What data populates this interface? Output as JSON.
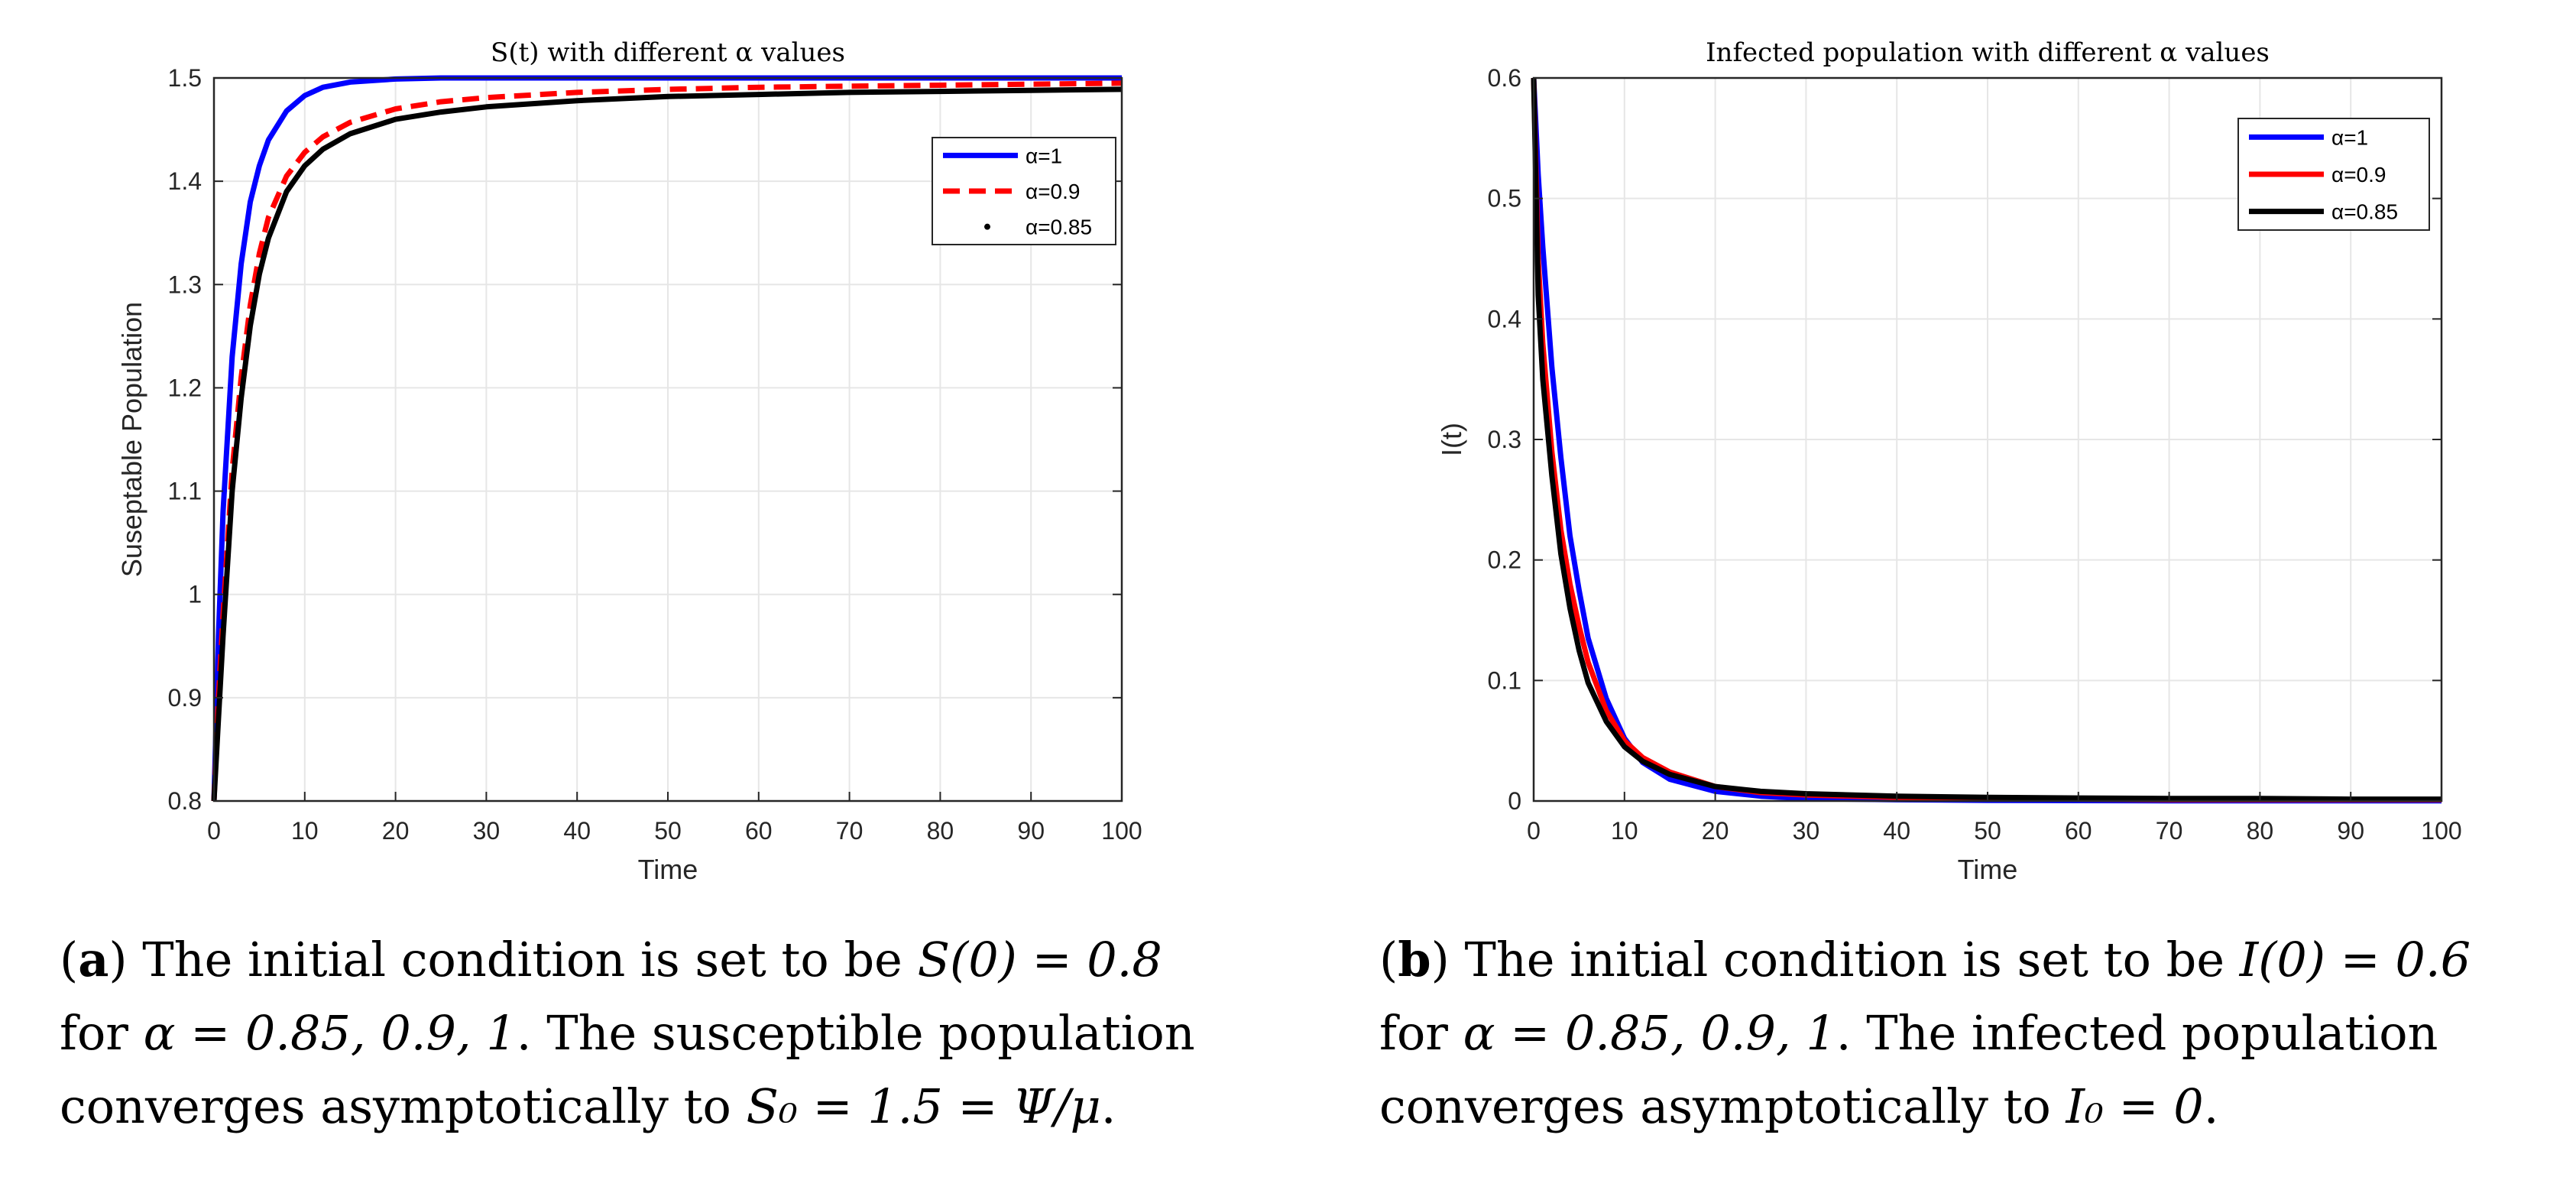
{
  "chart_data": [
    {
      "type": "line",
      "title": "S(t) with different α values",
      "xlabel": "Time",
      "ylabel": "Suseptable Population",
      "xlim": [
        0,
        100
      ],
      "ylim": [
        0.8,
        1.5
      ],
      "xticks": [
        "0",
        "10",
        "20",
        "30",
        "40",
        "50",
        "60",
        "70",
        "80",
        "90",
        "100"
      ],
      "yticks": [
        "0.8",
        "0.9",
        "1",
        "1.1",
        "1.2",
        "1.3",
        "1.4",
        "1.5"
      ],
      "grid": true,
      "legend_position": "top-right",
      "x": [
        0,
        0.5,
        1,
        2,
        3,
        4,
        5,
        6,
        8,
        10,
        12,
        15,
        20,
        25,
        30,
        40,
        50,
        60,
        70,
        80,
        90,
        100
      ],
      "series": [
        {
          "name": "α=1",
          "legend": "α=1",
          "style": "solid",
          "color": "#0000ff",
          "values": [
            0.8,
            0.96,
            1.08,
            1.23,
            1.32,
            1.38,
            1.415,
            1.44,
            1.468,
            1.483,
            1.491,
            1.496,
            1.499,
            1.5,
            1.5,
            1.5,
            1.5,
            1.5,
            1.5,
            1.5,
            1.5,
            1.5
          ]
        },
        {
          "name": "α=0.9",
          "legend": "α=0.9",
          "style": "dashed",
          "color": "#ff0000",
          "values": [
            0.8,
            0.9,
            0.98,
            1.12,
            1.21,
            1.28,
            1.33,
            1.365,
            1.405,
            1.428,
            1.443,
            1.457,
            1.47,
            1.477,
            1.481,
            1.486,
            1.489,
            1.491,
            1.492,
            1.493,
            1.494,
            1.495
          ]
        },
        {
          "name": "α=0.85",
          "legend": "α=0.85",
          "style": "solid",
          "color": "#000000",
          "values": [
            0.8,
            0.88,
            0.96,
            1.1,
            1.19,
            1.26,
            1.31,
            1.345,
            1.39,
            1.415,
            1.431,
            1.446,
            1.46,
            1.467,
            1.472,
            1.478,
            1.482,
            1.484,
            1.486,
            1.487,
            1.488,
            1.489
          ]
        }
      ]
    },
    {
      "type": "line",
      "title": "Infected population with different α values",
      "xlabel": "Time",
      "ylabel": "I(t)",
      "xlim": [
        0,
        100
      ],
      "ylim": [
        0,
        0.6
      ],
      "xticks": [
        "0",
        "10",
        "20",
        "30",
        "40",
        "50",
        "60",
        "70",
        "80",
        "90",
        "100"
      ],
      "yticks": [
        "0",
        "0.1",
        "0.2",
        "0.3",
        "0.4",
        "0.5",
        "0.6"
      ],
      "grid": true,
      "legend_position": "top-right",
      "x": [
        0,
        0.5,
        1,
        2,
        3,
        4,
        5,
        6,
        8,
        10,
        12,
        15,
        20,
        25,
        30,
        40,
        50,
        60,
        70,
        80,
        90,
        100
      ],
      "series": [
        {
          "name": "α=1",
          "legend": "α=1",
          "style": "solid",
          "color": "#0000ff",
          "values": [
            0.6,
            0.52,
            0.46,
            0.36,
            0.285,
            0.22,
            0.175,
            0.135,
            0.085,
            0.052,
            0.032,
            0.018,
            0.008,
            0.004,
            0.002,
            0.001,
            0.0005,
            0.0003,
            0.0002,
            0.0001,
            0.0001,
            0.0001
          ]
        },
        {
          "name": "α=0.9",
          "legend": "α=0.9",
          "style": "solid",
          "color": "#ff0000",
          "values": [
            0.6,
            0.45,
            0.38,
            0.29,
            0.225,
            0.18,
            0.145,
            0.115,
            0.075,
            0.05,
            0.036,
            0.024,
            0.012,
            0.007,
            0.005,
            0.003,
            0.002,
            0.0015,
            0.001,
            0.001,
            0.001,
            0.001
          ]
        },
        {
          "name": "α=0.85",
          "legend": "α=0.85",
          "style": "solid",
          "color": "#000000",
          "values": [
            0.6,
            0.42,
            0.35,
            0.27,
            0.205,
            0.16,
            0.125,
            0.098,
            0.066,
            0.045,
            0.033,
            0.022,
            0.012,
            0.008,
            0.006,
            0.004,
            0.003,
            0.0025,
            0.002,
            0.002,
            0.0015,
            0.0015
          ]
        }
      ]
    }
  ],
  "captions": {
    "a": {
      "label": "a",
      "line1_text": "The initial condition is set to be ",
      "line1_math": "S(0) = 0.8",
      "line2_text": "for ",
      "line2_math": "α = 0.85, 0.9, 1",
      "line2_rest": ". The susceptible population",
      "line3_text": "converges asymptotically to ",
      "line3_math": "S₀ = 1.5 = Ψ/μ",
      "line3_end": "."
    },
    "b": {
      "label": "b",
      "line1_text": "The initial condition is set to be ",
      "line1_math": "I(0) = 0.6",
      "line2_text": "for ",
      "line2_math": "α = 0.85, 0.9, 1",
      "line2_rest": ".  The infected population",
      "line3_text": "converges asymptotically to ",
      "line3_math": "I₀ = 0",
      "line3_end": "."
    }
  }
}
